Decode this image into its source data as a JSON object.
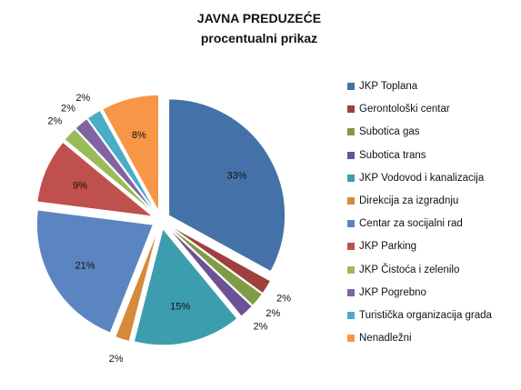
{
  "chart_data": {
    "type": "pie",
    "title": "JAVNA PREDUZEĆE",
    "subtitle": "procentualni prikaz",
    "exploded": true,
    "legend_position": "right",
    "slices": [
      {
        "name": "JKP Toplana",
        "value": 33,
        "label": "33%",
        "color": "#4472A8"
      },
      {
        "name": "Gerontološki centar",
        "value": 2,
        "label": "2%",
        "color": "#A0403E"
      },
      {
        "name": "Subotica gas",
        "value": 2,
        "label": "2%",
        "color": "#7F9C45"
      },
      {
        "name": "Subotica trans",
        "value": 2,
        "label": "2%",
        "color": "#6B5294"
      },
      {
        "name": "JKP Vodovod i kanalizacija",
        "value": 15,
        "label": "15%",
        "color": "#3C9DAE"
      },
      {
        "name": "Direkcija za izgradnju",
        "value": 2,
        "label": "2%",
        "color": "#D68A3A"
      },
      {
        "name": "Centar za socijalni rad",
        "value": 21,
        "label": "21%",
        "color": "#5B85C0"
      },
      {
        "name": "JKP Parking",
        "value": 9,
        "label": "9%",
        "color": "#C0504D"
      },
      {
        "name": "JKP Čistoća i zelenilo",
        "value": 2,
        "label": "2%",
        "color": "#9BBB59"
      },
      {
        "name": "JKP Pogrebno",
        "value": 2,
        "label": "2%",
        "color": "#8064A2"
      },
      {
        "name": "Turistička organizacija grada",
        "value": 2,
        "label": "2%",
        "color": "#4BACC6"
      },
      {
        "name": "Nenadležni",
        "value": 8,
        "label": "8%",
        "color": "#F79646"
      }
    ]
  }
}
